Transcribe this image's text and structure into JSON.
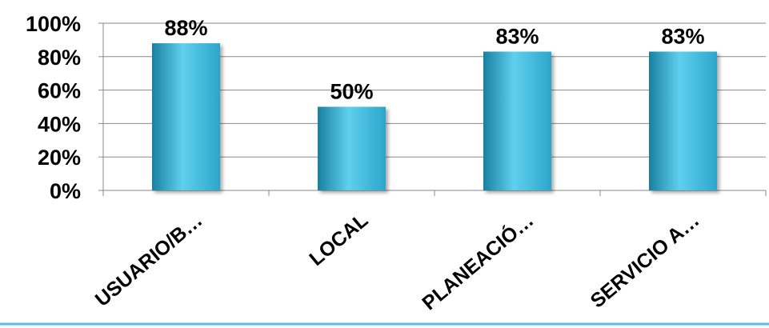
{
  "chart_data": {
    "type": "bar",
    "categories": [
      "USUARIO/B…",
      "LOCAL",
      "PLANEACIÓ…",
      "SERVICIO A…"
    ],
    "values": [
      88,
      50,
      83,
      83
    ],
    "data_labels": [
      "88%",
      "50%",
      "83%",
      "83%"
    ],
    "ylim": [
      0,
      100
    ],
    "y_ticks": [
      0,
      20,
      40,
      60,
      80,
      100
    ],
    "y_tick_labels": [
      "0%",
      "20%",
      "40%",
      "60%",
      "80%",
      "100%"
    ],
    "grid": true,
    "legend": "none",
    "bar_color": "#2ba6cb",
    "bar_color_light": "#5fd0ee",
    "bar_color_dark": "#1a7fa0",
    "bottom_rule_color": "#5bb8e8"
  }
}
